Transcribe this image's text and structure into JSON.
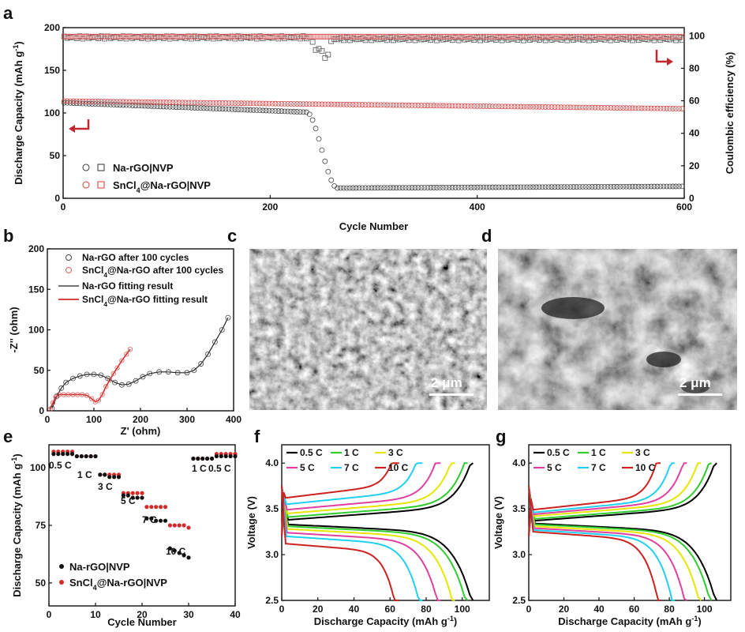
{
  "panels": {
    "a": "a",
    "b": "b",
    "c": "c",
    "d": "d",
    "e": "e",
    "f": "f",
    "g": "g"
  },
  "scale_bars": {
    "c": "2 μm",
    "d": "2 μm"
  },
  "colors": {
    "black_series": "#222222",
    "red_series": "#d94a4a",
    "arrow": "#c0282d"
  },
  "chart_data": [
    {
      "id": "a",
      "type": "scatter",
      "xlabel": "Cycle Number",
      "ylabel": "Discharge Capacity (mAh g-1)",
      "ylabel_right": "Coulombic efficiency (%)",
      "xlim": [
        0,
        600
      ],
      "ylim": [
        0,
        200
      ],
      "ylim_right": [
        0,
        105
      ],
      "xticks": [
        "0",
        "200",
        "400",
        "600"
      ],
      "yticks": [
        "0",
        "50",
        "100",
        "150",
        "200"
      ],
      "yticks_right": [
        "0",
        "20",
        "40",
        "60",
        "80",
        "100"
      ],
      "legend": [
        "Na-rGO|NVP",
        "SnCl4@Na-rGO|NVP"
      ],
      "legend_placement": "lower-left",
      "series": [
        {
          "name": "Na-rGO|NVP",
          "kind": "capacity",
          "x_range": [
            1,
            600
          ],
          "capacity": {
            "start": 112,
            "pre_drop": 101,
            "drop_start": 235,
            "drop_end": 265,
            "post": 12,
            "end": 14
          }
        },
        {
          "name": "Na-rGO|NVP",
          "kind": "efficiency",
          "start": 99,
          "dip_x": [
            240,
            260
          ],
          "dip_min": 81,
          "after": 98
        },
        {
          "name": "SnCl4@Na-rGO|NVP",
          "kind": "capacity",
          "start": 114,
          "end": 105
        },
        {
          "name": "SnCl4@Na-rGO|NVP",
          "kind": "efficiency",
          "value": 99.5
        }
      ]
    },
    {
      "id": "b",
      "type": "line",
      "xlabel": "Z' (ohm)",
      "ylabel": "-Z'' (ohm)",
      "xlim": [
        0,
        400
      ],
      "ylim": [
        0,
        200
      ],
      "xticks": [
        "0",
        "100",
        "200",
        "300",
        "400"
      ],
      "yticks": [
        "0",
        "50",
        "100",
        "150",
        "200"
      ],
      "legend": [
        "Na-rGO after 100 cycles",
        "SnCl4@Na-rGO after 100 cycles",
        "Na-rGO fitting result",
        "SnCl4@Na-rGO fitting result"
      ],
      "series": [
        {
          "name": "Na-rGO after 100 cycles",
          "x": [
            10,
            20,
            30,
            40,
            55,
            70,
            85,
            100,
            115,
            130,
            145,
            160,
            175,
            190,
            205,
            220,
            240,
            260,
            280,
            300,
            315,
            330,
            345,
            360,
            375,
            388
          ],
          "y": [
            3,
            18,
            28,
            35,
            40,
            43,
            45,
            45,
            44,
            40,
            35,
            32,
            33,
            37,
            42,
            46,
            48,
            48,
            47,
            47,
            50,
            58,
            70,
            85,
            100,
            115
          ]
        },
        {
          "name": "SnCl4@Na-rGO after 100 cycles",
          "x": [
            6,
            12,
            18,
            25,
            35,
            45,
            55,
            65,
            75,
            85,
            95,
            103,
            110,
            118,
            126,
            134,
            142,
            150,
            160,
            170,
            178
          ],
          "y": [
            2,
            10,
            17,
            20,
            20,
            20,
            20,
            20,
            20,
            19,
            15,
            11,
            13,
            20,
            30,
            38,
            46,
            53,
            62,
            70,
            76
          ]
        }
      ]
    },
    {
      "id": "e",
      "type": "scatter",
      "xlabel": "Cycle Number",
      "ylabel": "Discharge Capacity (mAh g-1)",
      "xlim": [
        0,
        40
      ],
      "ylim": [
        40,
        110
      ],
      "xticks": [
        "0",
        "10",
        "20",
        "30",
        "40"
      ],
      "yticks": [
        "50",
        "75",
        "100"
      ],
      "legend": [
        "Na-rGO|NVP",
        "SnCl4@Na-rGO|NVP"
      ],
      "rate_labels": [
        "0.5 C",
        "1 C",
        "3 C",
        "5 C",
        "7 C",
        "10 C",
        "1 C",
        "0.5 C"
      ],
      "series": [
        {
          "name": "Na-rGO|NVP",
          "x": [
            1,
            2,
            3,
            4,
            5,
            6,
            7,
            8,
            9,
            10,
            11,
            12,
            13,
            14,
            15,
            16,
            17,
            18,
            19,
            20,
            21,
            22,
            23,
            24,
            25,
            26,
            27,
            28,
            29,
            30,
            31,
            32,
            33,
            34,
            35,
            36,
            37,
            38,
            39,
            40
          ],
          "y": [
            106,
            106,
            106,
            106,
            106,
            105,
            105,
            105,
            105,
            105,
            97,
            97,
            96,
            96,
            96,
            88,
            88,
            87,
            87,
            87,
            78,
            78,
            77,
            77,
            77,
            65,
            64,
            63,
            62,
            61,
            104,
            104,
            104,
            104,
            104,
            105,
            105,
            105,
            105,
            105
          ]
        },
        {
          "name": "SnCl4@Na-rGO|NVP",
          "x": [
            1,
            2,
            3,
            4,
            5,
            6,
            7,
            8,
            9,
            10,
            11,
            12,
            13,
            14,
            15,
            16,
            17,
            18,
            19,
            20,
            21,
            22,
            23,
            24,
            25,
            26,
            27,
            28,
            29,
            30,
            31,
            32,
            33,
            34,
            35,
            36,
            37,
            38,
            39,
            40
          ],
          "y": [
            107,
            107,
            107,
            107,
            107,
            105,
            105,
            105,
            105,
            105,
            97,
            97,
            97,
            97,
            97,
            89,
            89,
            89,
            89,
            89,
            83,
            83,
            83,
            83,
            83,
            75,
            75,
            75,
            75,
            74,
            104,
            104,
            104,
            104,
            104,
            106,
            106,
            106,
            106,
            106
          ]
        }
      ]
    },
    {
      "id": "f",
      "type": "line",
      "xlabel": "Discharge Capacity (mAh g-1)",
      "ylabel": "Voltage (V)",
      "xlim": [
        0,
        115
      ],
      "ylim": [
        2.5,
        4.2
      ],
      "xticks": [
        "0",
        "20",
        "40",
        "60",
        "80",
        "100"
      ],
      "yticks": [
        "2.5",
        "3.0",
        "3.5",
        "4.0"
      ],
      "legend": [
        "0.5 C",
        "1 C",
        "3 C",
        "5 C",
        "7 C",
        "10 C"
      ],
      "series": [
        {
          "name": "0.5 C",
          "color": "#000000",
          "cap": 106,
          "v_dis": 3.33,
          "v_chg": 3.38
        },
        {
          "name": "1 C",
          "color": "#2ecc2e",
          "cap": 103,
          "v_dis": 3.31,
          "v_chg": 3.41
        },
        {
          "name": "3 C",
          "color": "#e6e600",
          "cap": 96,
          "v_dis": 3.28,
          "v_chg": 3.45
        },
        {
          "name": "5 C",
          "color": "#e040a0",
          "cap": 88,
          "v_dis": 3.24,
          "v_chg": 3.49
        },
        {
          "name": "7 C",
          "color": "#20d0f0",
          "cap": 78,
          "v_dis": 3.2,
          "v_chg": 3.55
        },
        {
          "name": "10 C",
          "color": "#cc2222",
          "cap": 65,
          "v_dis": 3.12,
          "v_chg": 3.62
        }
      ]
    },
    {
      "id": "g",
      "type": "line",
      "xlabel": "Discharge Capacity (mAh g-1)",
      "ylabel": "Voltage (V)",
      "xlim": [
        0,
        115
      ],
      "ylim": [
        2.5,
        4.2
      ],
      "xticks": [
        "0",
        "20",
        "40",
        "60",
        "80",
        "100"
      ],
      "yticks": [
        "2.5",
        "3.0",
        "3.5",
        "4.0"
      ],
      "legend": [
        "0.5 C",
        "1 C",
        "3 C",
        "5 C",
        "7 C",
        "10 C"
      ],
      "series": [
        {
          "name": "0.5 C",
          "color": "#000000",
          "cap": 107,
          "v_dis": 3.34,
          "v_chg": 3.37
        },
        {
          "name": "1 C",
          "color": "#2ecc2e",
          "cap": 104,
          "v_dis": 3.33,
          "v_chg": 3.39
        },
        {
          "name": "3 C",
          "color": "#e6e600",
          "cap": 98,
          "v_dis": 3.31,
          "v_chg": 3.42
        },
        {
          "name": "5 C",
          "color": "#e040a0",
          "cap": 90,
          "v_dis": 3.29,
          "v_chg": 3.44
        },
        {
          "name": "7 C",
          "color": "#20d0f0",
          "cap": 83,
          "v_dis": 3.27,
          "v_chg": 3.46
        },
        {
          "name": "10 C",
          "color": "#cc2222",
          "cap": 75,
          "v_dis": 3.25,
          "v_chg": 3.49
        }
      ]
    }
  ]
}
